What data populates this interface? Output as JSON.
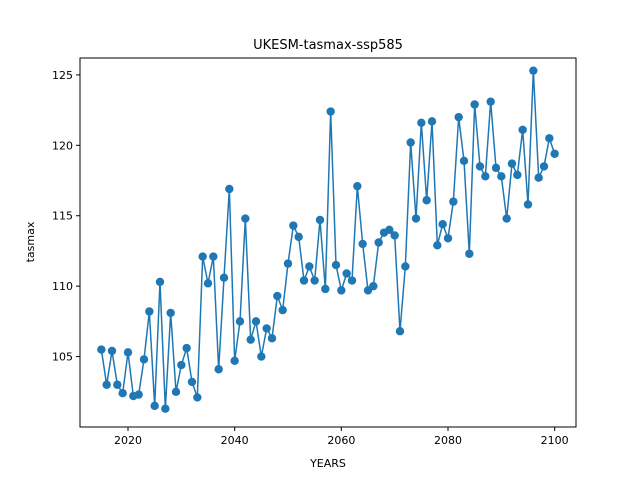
{
  "chart_data": {
    "type": "line",
    "title": "UKESM-tasmax-ssp585",
    "xlabel": "YEARS",
    "ylabel": "tasmax",
    "xlim": [
      2011,
      2104
    ],
    "ylim": [
      100.0,
      126.2
    ],
    "xticks": [
      2020,
      2040,
      2060,
      2080,
      2100
    ],
    "yticks": [
      105,
      110,
      115,
      120,
      125
    ],
    "grid": false,
    "markers": true,
    "color": "#1f77b4",
    "x": [
      2015,
      2016,
      2017,
      2018,
      2019,
      2020,
      2021,
      2022,
      2023,
      2024,
      2025,
      2026,
      2027,
      2028,
      2029,
      2030,
      2031,
      2032,
      2033,
      2034,
      2035,
      2036,
      2037,
      2038,
      2039,
      2040,
      2041,
      2042,
      2043,
      2044,
      2045,
      2046,
      2047,
      2048,
      2049,
      2050,
      2051,
      2052,
      2053,
      2054,
      2055,
      2056,
      2057,
      2058,
      2059,
      2060,
      2061,
      2062,
      2063,
      2064,
      2065,
      2066,
      2067,
      2068,
      2069,
      2070,
      2071,
      2072,
      2073,
      2074,
      2075,
      2076,
      2077,
      2078,
      2079,
      2080,
      2081,
      2082,
      2083,
      2084,
      2085,
      2086,
      2087,
      2088,
      2089,
      2090,
      2091,
      2092,
      2093,
      2094,
      2095,
      2096,
      2097,
      2098,
      2099,
      2100
    ],
    "series": [
      {
        "values": [
          105.5,
          103.0,
          105.4,
          103.0,
          102.4,
          105.3,
          102.2,
          102.3,
          104.8,
          108.2,
          101.5,
          110.3,
          101.3,
          108.1,
          102.5,
          104.4,
          105.6,
          103.2,
          102.1,
          112.1,
          110.2,
          112.1,
          104.1,
          110.6,
          116.9,
          104.7,
          107.5,
          114.8,
          106.2,
          107.5,
          105.0,
          107.0,
          106.3,
          109.3,
          108.3,
          111.6,
          114.3,
          113.5,
          110.4,
          111.4,
          110.4,
          114.7,
          109.8,
          122.4,
          111.5,
          109.7,
          110.9,
          110.4,
          117.1,
          113.0,
          109.7,
          110.0,
          113.1,
          113.8,
          114.0,
          113.6,
          106.8,
          111.4,
          120.2,
          114.8,
          121.6,
          116.1,
          121.7,
          112.9,
          114.4,
          113.4,
          116.0,
          122.0,
          118.9,
          112.3,
          122.9,
          118.5,
          117.8,
          123.1,
          118.4,
          117.8,
          114.8,
          118.7,
          117.9,
          121.1,
          115.8,
          125.3,
          117.7,
          118.5,
          120.5,
          119.4
        ]
      }
    ]
  }
}
